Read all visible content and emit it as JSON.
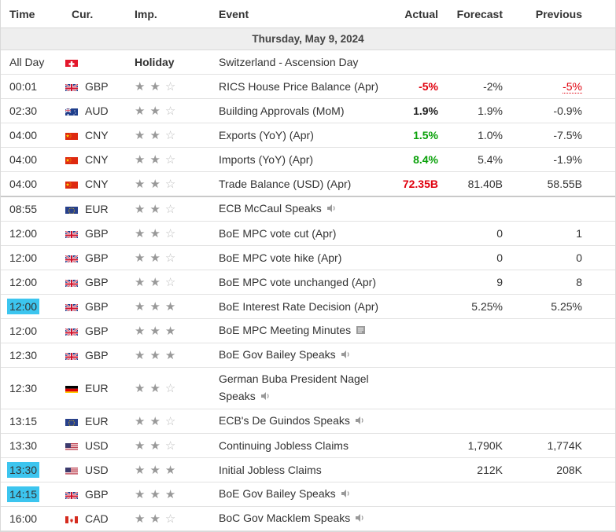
{
  "header": {
    "time": "Time",
    "cur": "Cur.",
    "imp": "Imp.",
    "event": "Event",
    "actual": "Actual",
    "forecast": "Forecast",
    "previous": "Previous"
  },
  "date_label": "Thursday, May 9, 2024",
  "rows": [
    {
      "time": "All Day",
      "flag": "switzerland-flag",
      "cur": "",
      "imp": "Holiday",
      "event": "Switzerland - Ascension Day",
      "actual": "",
      "forecast": "",
      "previous": ""
    },
    {
      "time": "00:01",
      "flag": "uk-flag",
      "cur": "GBP",
      "stars": 2,
      "event": "RICS House Price Balance (Apr)",
      "actual": "-5%",
      "forecast": "-2%",
      "previous": "-5%"
    },
    {
      "time": "02:30",
      "flag": "australia-flag",
      "cur": "AUD",
      "stars": 2,
      "event": "Building Approvals (MoM)",
      "actual": "1.9%",
      "forecast": "1.9%",
      "previous": "-0.9%"
    },
    {
      "time": "04:00",
      "flag": "china-flag",
      "cur": "CNY",
      "stars": 2,
      "event": "Exports (YoY) (Apr)",
      "actual": "1.5%",
      "forecast": "1.0%",
      "previous": "-7.5%"
    },
    {
      "time": "04:00",
      "flag": "china-flag",
      "cur": "CNY",
      "stars": 2,
      "event": "Imports (YoY) (Apr)",
      "actual": "8.4%",
      "forecast": "5.4%",
      "previous": "-1.9%"
    },
    {
      "time": "04:00",
      "flag": "china-flag",
      "cur": "CNY",
      "stars": 2,
      "event": "Trade Balance (USD) (Apr)",
      "actual": "72.35B",
      "forecast": "81.40B",
      "previous": "58.55B"
    },
    {
      "time": "08:55",
      "flag": "eu-flag",
      "cur": "EUR",
      "stars": 2,
      "event": "ECB McCaul Speaks",
      "icon": "speaker-icon",
      "actual": "",
      "forecast": "",
      "previous": ""
    },
    {
      "time": "12:00",
      "flag": "uk-flag",
      "cur": "GBP",
      "stars": 2,
      "event": "BoE MPC vote cut (Apr)",
      "actual": "",
      "forecast": "0",
      "previous": "1"
    },
    {
      "time": "12:00",
      "flag": "uk-flag",
      "cur": "GBP",
      "stars": 2,
      "event": "BoE MPC vote hike (Apr)",
      "actual": "",
      "forecast": "0",
      "previous": "0"
    },
    {
      "time": "12:00",
      "flag": "uk-flag",
      "cur": "GBP",
      "stars": 2,
      "event": "BoE MPC vote unchanged (Apr)",
      "actual": "",
      "forecast": "9",
      "previous": "8"
    },
    {
      "time": "12:00",
      "flag": "uk-flag",
      "cur": "GBP",
      "stars": 3,
      "event": "BoE Interest Rate Decision (Apr)",
      "actual": "",
      "forecast": "5.25%",
      "previous": "5.25%",
      "highlight": true
    },
    {
      "time": "12:00",
      "flag": "uk-flag",
      "cur": "GBP",
      "stars": 3,
      "event": "BoE MPC Meeting Minutes",
      "icon": "document-icon",
      "actual": "",
      "forecast": "",
      "previous": ""
    },
    {
      "time": "12:30",
      "flag": "uk-flag",
      "cur": "GBP",
      "stars": 3,
      "event": "BoE Gov Bailey Speaks",
      "icon": "speaker-icon",
      "actual": "",
      "forecast": "",
      "previous": ""
    },
    {
      "time": "12:30",
      "flag": "germany-flag",
      "cur": "EUR",
      "stars": 2,
      "event_line1": "German Buba President Nagel",
      "event": "Speaks",
      "icon": "speaker-icon",
      "actual": "",
      "forecast": "",
      "previous": ""
    },
    {
      "time": "13:15",
      "flag": "eu-flag",
      "cur": "EUR",
      "stars": 2,
      "event": "ECB's De Guindos Speaks",
      "icon": "speaker-icon",
      "actual": "",
      "forecast": "",
      "previous": ""
    },
    {
      "time": "13:30",
      "flag": "usa-flag",
      "cur": "USD",
      "stars": 2,
      "event": "Continuing Jobless Claims",
      "actual": "",
      "forecast": "1,790K",
      "previous": "1,774K"
    },
    {
      "time": "13:30",
      "flag": "usa-flag",
      "cur": "USD",
      "stars": 3,
      "event": "Initial Jobless Claims",
      "actual": "",
      "forecast": "212K",
      "previous": "208K",
      "highlight": true
    },
    {
      "time": "14:15",
      "flag": "uk-flag",
      "cur": "GBP",
      "stars": 3,
      "event": "BoE Gov Bailey Speaks",
      "icon": "speaker-icon",
      "actual": "",
      "forecast": "",
      "previous": "",
      "highlight": true
    },
    {
      "time": "16:00",
      "flag": "canada-flag",
      "cur": "CAD",
      "stars": 2,
      "event": "BoC Gov Macklem Speaks",
      "icon": "speaker-icon",
      "actual": "",
      "forecast": "",
      "previous": ""
    }
  ],
  "colors": {
    "negative": "#e0000d",
    "positive": "#0aa10a",
    "highlight": "#3cc5ef",
    "date_bg": "#eeeeee"
  }
}
